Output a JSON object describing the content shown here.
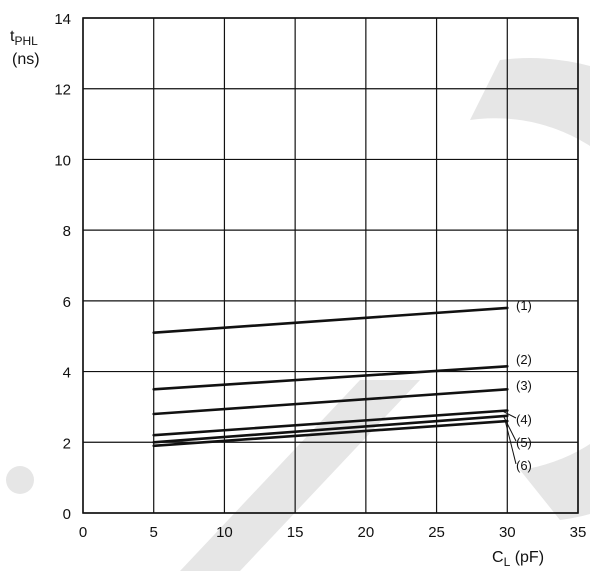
{
  "chart_data": {
    "type": "line",
    "xlabel": {
      "main": "C",
      "sub": "L",
      "unit": " (pF)"
    },
    "ylabel": {
      "main": "t",
      "sub": "PHL",
      "unit": "(ns)"
    },
    "xlim": [
      0,
      35
    ],
    "ylim": [
      0,
      14
    ],
    "x_ticks": [
      0,
      5,
      10,
      15,
      20,
      25,
      30,
      35
    ],
    "y_ticks": [
      0,
      2,
      4,
      6,
      8,
      10,
      12,
      14
    ],
    "grid": true,
    "series": [
      {
        "name": "(1)",
        "x": [
          5,
          30
        ],
        "y": [
          5.1,
          5.8
        ]
      },
      {
        "name": "(2)",
        "x": [
          5,
          30
        ],
        "y": [
          3.5,
          4.15
        ]
      },
      {
        "name": "(3)",
        "x": [
          5,
          30
        ],
        "y": [
          2.8,
          3.5
        ]
      },
      {
        "name": "(4)",
        "x": [
          5,
          30
        ],
        "y": [
          2.2,
          2.9
        ]
      },
      {
        "name": "(5)",
        "x": [
          5,
          30
        ],
        "y": [
          2.0,
          2.75
        ]
      },
      {
        "name": "(6)",
        "x": [
          5,
          30
        ],
        "y": [
          1.9,
          2.6
        ]
      }
    ]
  },
  "colors": {
    "line": "#111111",
    "grid": "#111111",
    "watermark": "#e6e6e6"
  }
}
